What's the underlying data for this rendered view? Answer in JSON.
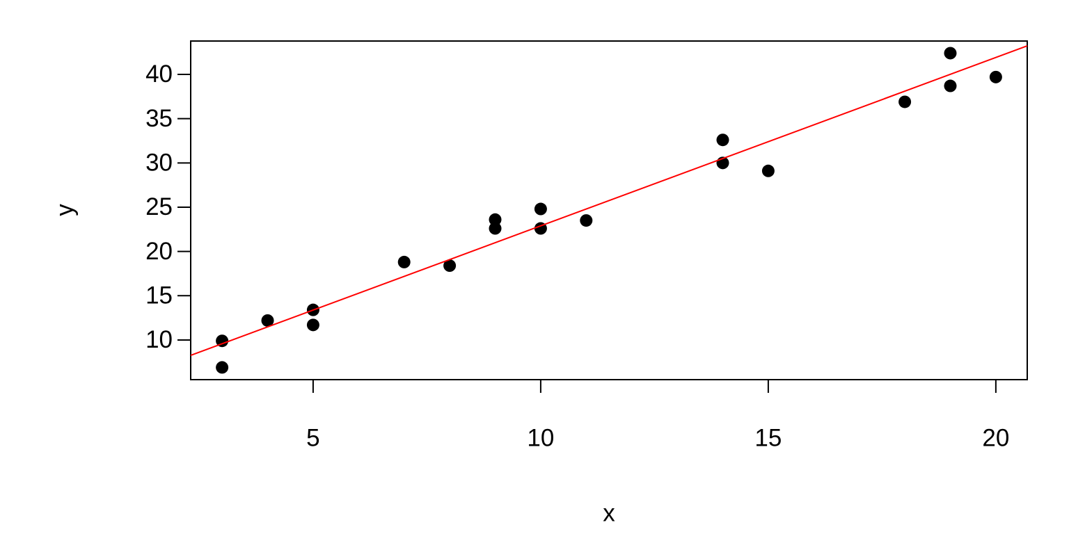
{
  "chart_data": {
    "type": "scatter",
    "x_label": "x",
    "y_label": "y",
    "x": [
      3,
      3,
      4,
      5,
      5,
      7,
      8,
      9,
      9,
      10,
      10,
      11,
      14,
      14,
      15,
      18,
      19,
      19,
      20
    ],
    "series": [
      {
        "color": "#000000",
        "values": [
          9.9,
          6.9,
          12.2,
          13.4,
          11.7,
          18.8,
          18.4,
          23.6,
          22.6,
          24.8,
          22.6,
          23.5,
          32.6,
          30.0,
          29.1,
          36.9,
          42.4,
          38.7,
          39.7
        ]
      }
    ],
    "abline": {
      "intercept": 3.87,
      "slope": 1.902,
      "color": "#ff0000"
    },
    "xlim": [
      2.31,
      20.69
    ],
    "ylim": [
      5.52,
      43.77
    ],
    "xticks": [
      5,
      10,
      15,
      20
    ],
    "yticks": [
      10,
      15,
      20,
      25,
      30,
      35,
      40
    ]
  }
}
